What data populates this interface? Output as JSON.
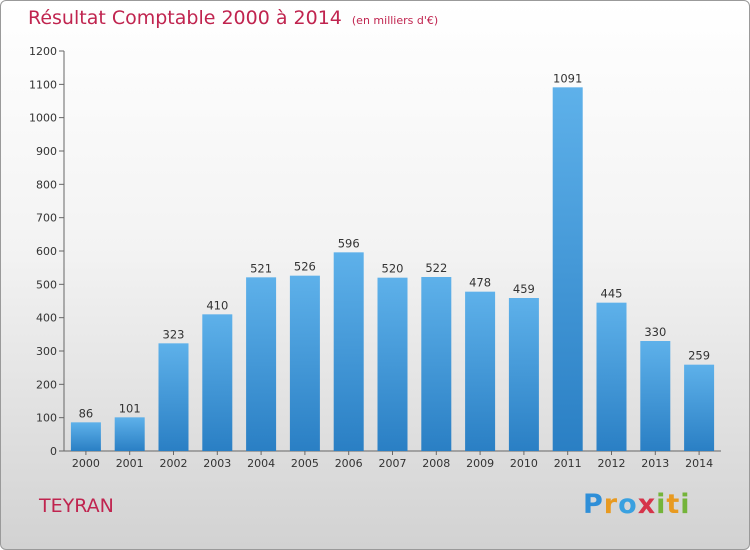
{
  "chart_data": {
    "type": "bar",
    "title": "Résultat Comptable 2000 à 2014",
    "subtitle": "(en milliers d'€)",
    "categories": [
      "2000",
      "2001",
      "2002",
      "2003",
      "2004",
      "2005",
      "2006",
      "2007",
      "2008",
      "2009",
      "2010",
      "2011",
      "2012",
      "2013",
      "2014"
    ],
    "values": [
      86,
      101,
      323,
      410,
      521,
      526,
      596,
      520,
      522,
      478,
      459,
      1091,
      445,
      330,
      259
    ],
    "ylim": [
      0,
      1200
    ],
    "yticks": [
      0,
      100,
      200,
      300,
      400,
      500,
      600,
      700,
      800,
      900,
      1000,
      1100,
      1200
    ],
    "grid": false,
    "bar_color": "#3f98dc"
  },
  "location": "TEYRAN",
  "logo": {
    "text": "Proxiti",
    "letters": [
      {
        "ch": "P",
        "color": "#2f8fd8"
      },
      {
        "ch": "r",
        "color": "#e89a20"
      },
      {
        "ch": "o",
        "color": "#3aa1e0"
      },
      {
        "ch": "x",
        "color": "#d6344a"
      },
      {
        "ch": "i",
        "color": "#74b43a"
      },
      {
        "ch": "t",
        "color": "#e89a20"
      },
      {
        "ch": "i",
        "color": "#74b43a"
      }
    ]
  }
}
